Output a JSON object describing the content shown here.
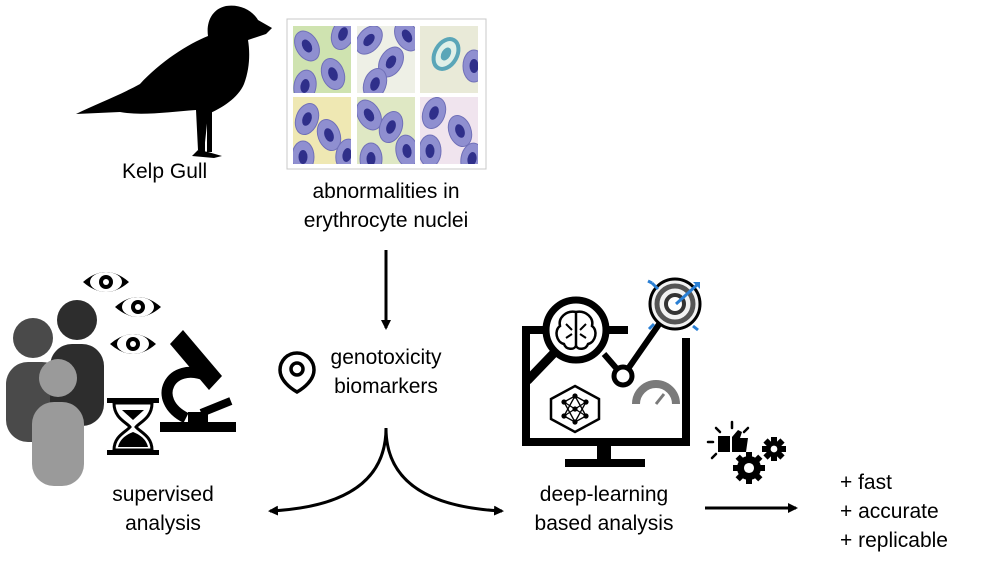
{
  "labels": {
    "bird": "Kelp Gull",
    "cells_line1": "abnormalities in",
    "cells_line2": "erythrocyte nuclei",
    "bio_line1": "genotoxicity",
    "bio_line2": "biomarkers",
    "sup_line1": "supervised",
    "sup_line2": "analysis",
    "dl_line1": "deep-learning",
    "dl_line2": "based analysis",
    "benefit1": "+ fast",
    "benefit2": "+ accurate",
    "benefit3": "+ replicable"
  },
  "micrograph_panel_colors": [
    "#cfe3b0",
    "#eef0e6",
    "#e9ead8",
    "#efe8b3",
    "#dfe8c4",
    "#f0e4ee"
  ],
  "cell_colors": {
    "cytoplasm": "#8f8fd0",
    "nucleus": "#2f2f8a",
    "teal_cell": "#5aa6b8"
  },
  "icon_colors": {
    "person_back": "#4a4a4a",
    "person_mid": "#2d2d2d",
    "person_front": "#9a9a9a",
    "target_arrow": "#2a7fd4",
    "gauge": "#7a7a7a"
  },
  "icons": [
    "gull-silhouette",
    "microscope-icon",
    "hourglass-icon",
    "eye-icon",
    "people-icon",
    "location-pin-icon",
    "monitor-icon",
    "brain-icon",
    "neural-network-icon",
    "target-icon",
    "gauge-icon",
    "gears-icon",
    "thumbs-up-icon"
  ]
}
